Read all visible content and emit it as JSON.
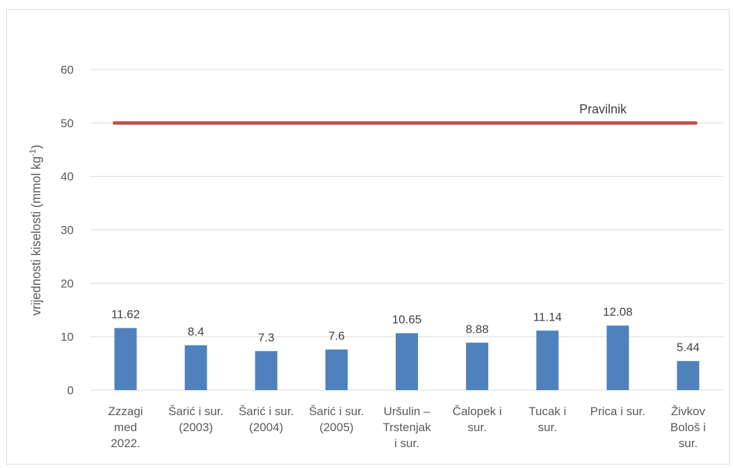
{
  "chart_data": {
    "type": "bar",
    "categories": [
      [
        "Zzzagi",
        "med",
        "2022."
      ],
      [
        "Šarić i sur.",
        "(2003)"
      ],
      [
        "Šarić i sur.",
        "(2004)"
      ],
      [
        "Šarić i sur.",
        "(2005)"
      ],
      [
        "Uršulin –",
        "Trstenjak",
        "i sur."
      ],
      [
        "Čalopek i",
        "sur."
      ],
      [
        "Tucak i",
        "sur."
      ],
      [
        "Prica i sur."
      ],
      [
        "Živkov",
        "Bološ i",
        "sur."
      ]
    ],
    "values": [
      11.62,
      8.4,
      7.3,
      7.6,
      10.65,
      8.88,
      11.14,
      12.08,
      5.44
    ],
    "data_labels": [
      "11.62",
      "8.4",
      "7.3",
      "7.6",
      "10.65",
      "8.88",
      "11.14",
      "12.08",
      "5.44"
    ],
    "ylabel": "vrijednosti kiselosti (mmol kg",
    "ylabel_sup": "-1",
    "ylabel_end": ")",
    "ylim": [
      0,
      60
    ],
    "yticks": [
      0,
      10,
      20,
      30,
      40,
      50,
      60
    ],
    "grid": true,
    "reference_line": {
      "label": "Pravilnik",
      "value": 50,
      "color": "#c0504d"
    },
    "bar_color": "#4f81bd"
  }
}
